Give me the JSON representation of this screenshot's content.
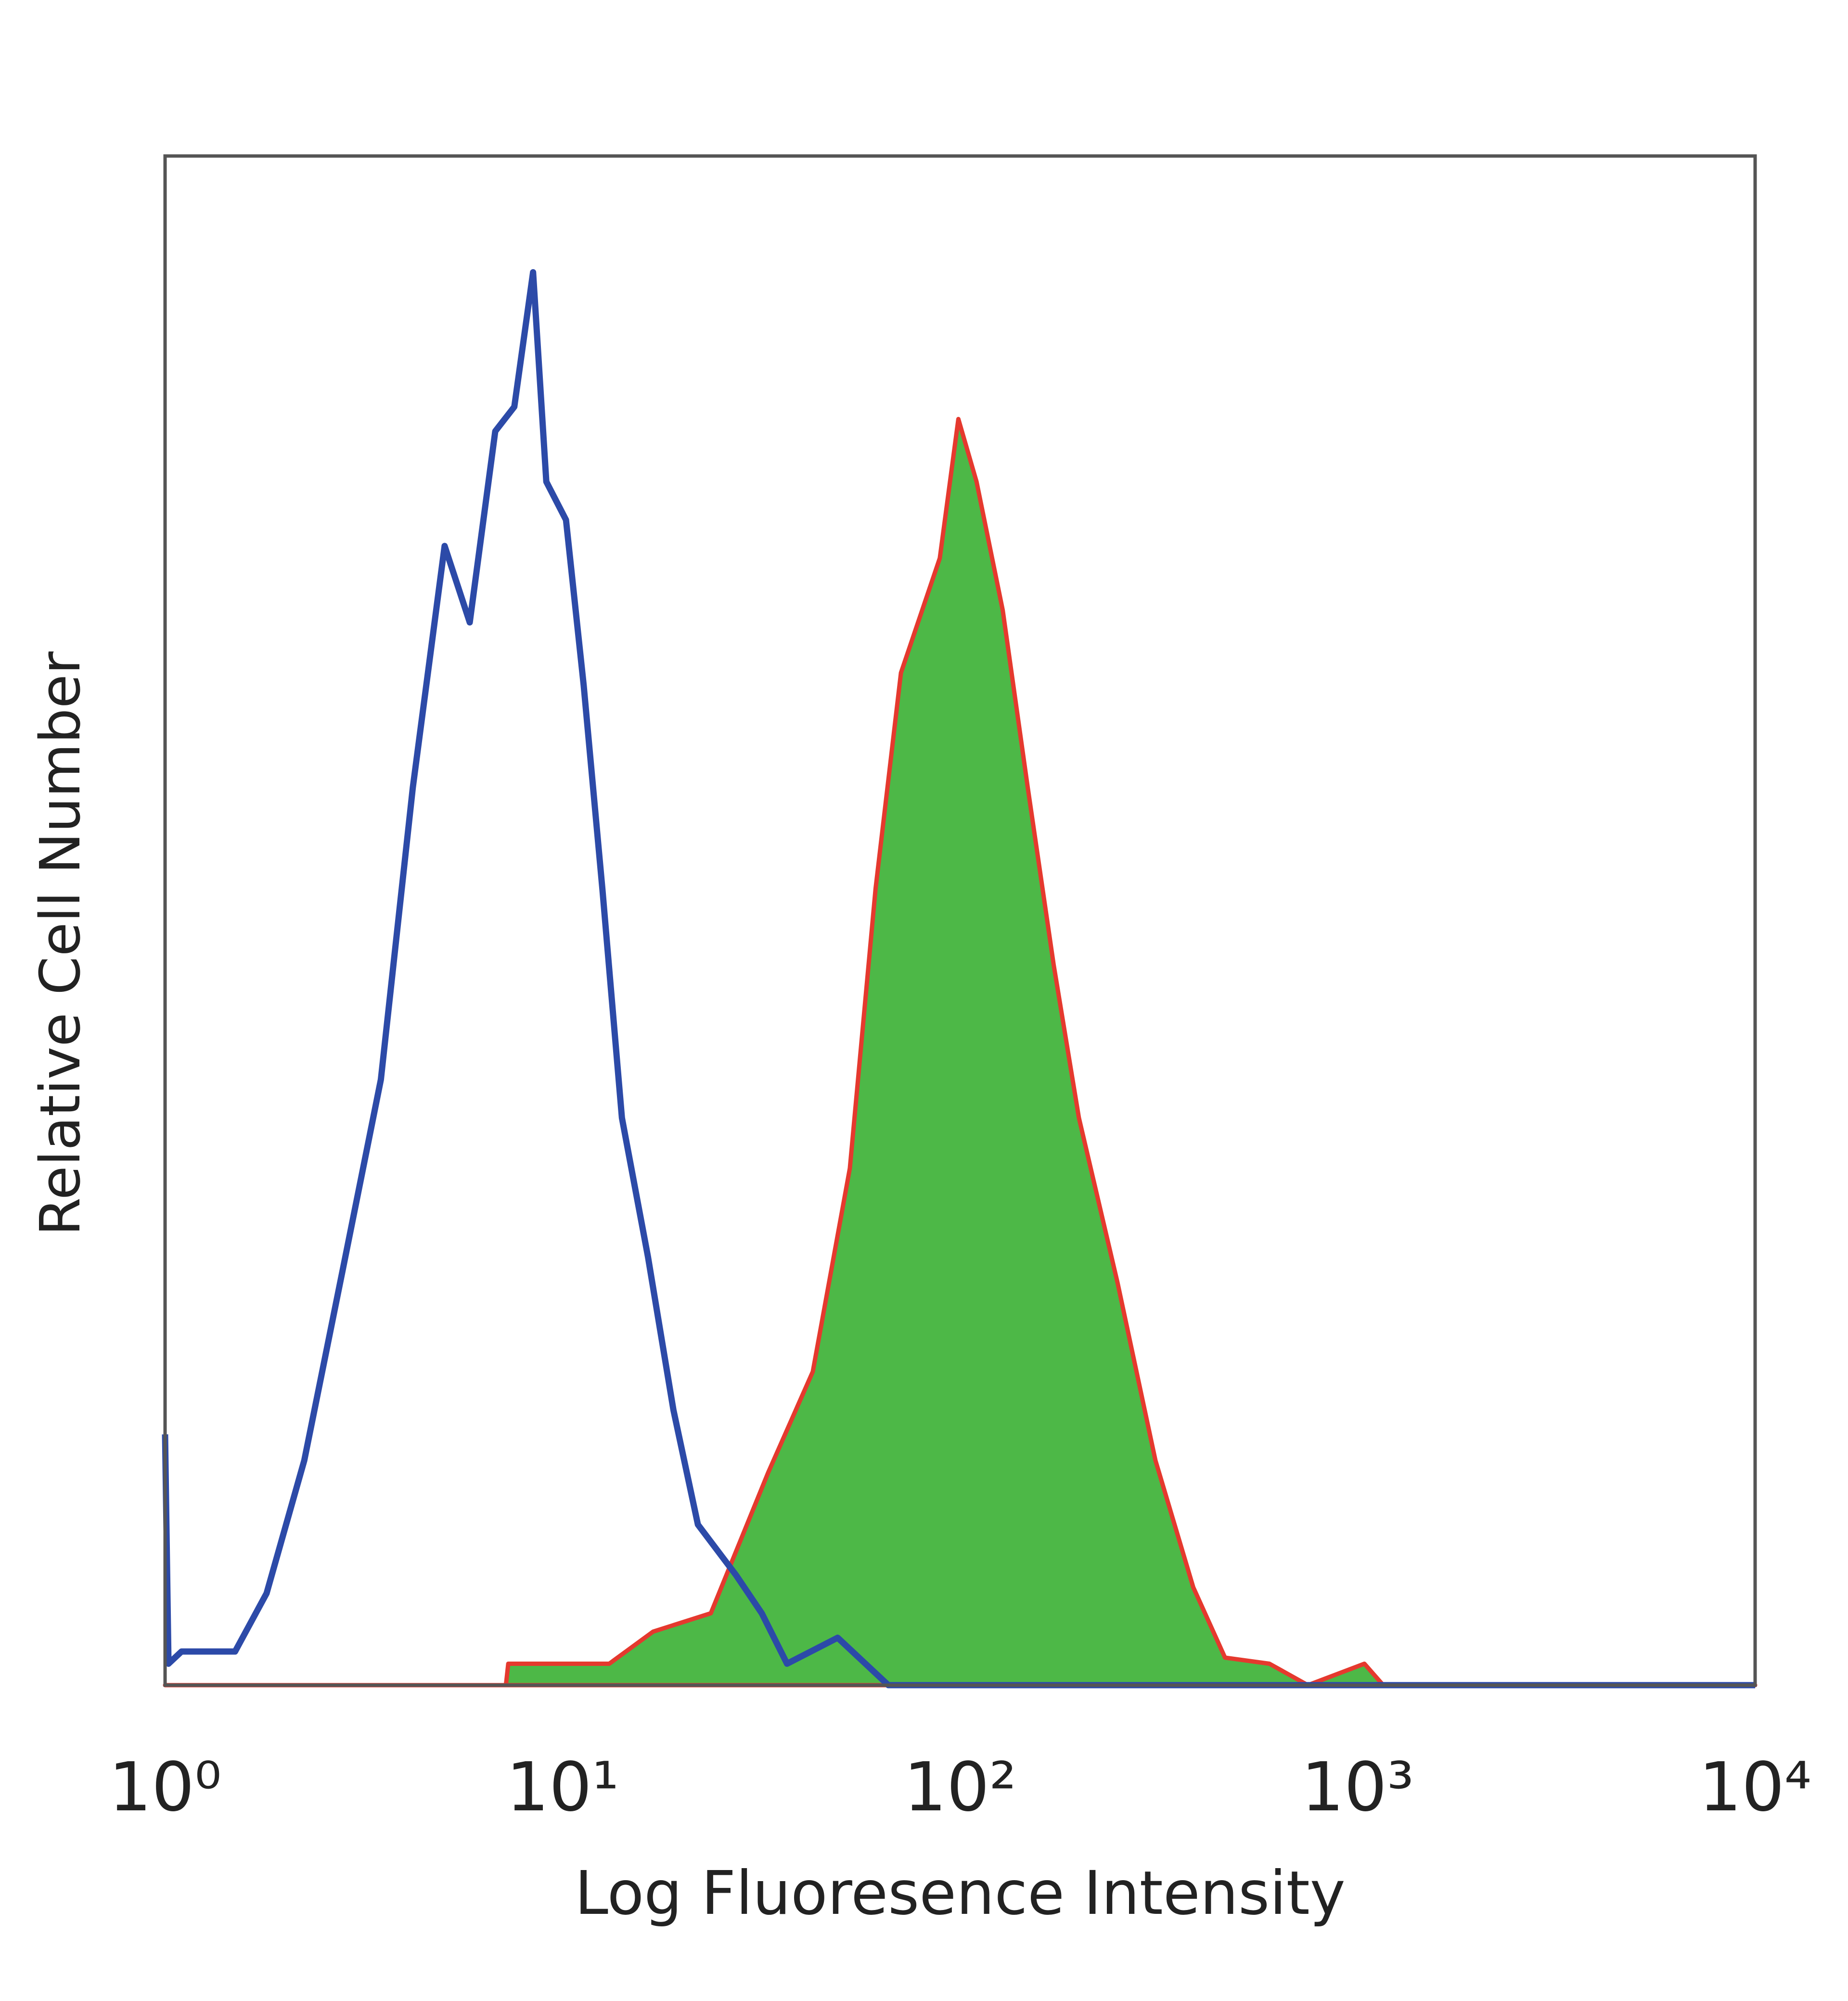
{
  "chart_data": {
    "type": "histogram-line",
    "xlabel": "Log Fluoresence Intensity",
    "ylabel": "Relative Cell Number",
    "xscale": "log",
    "xlim": [
      1,
      10000
    ],
    "ylim": [
      0,
      100
    ],
    "xticks": [
      {
        "value": 1,
        "label": "10⁰"
      },
      {
        "value": 10,
        "label": "10¹"
      },
      {
        "value": 100,
        "label": "10²"
      },
      {
        "value": 1000,
        "label": "10³"
      },
      {
        "value": 10000,
        "label": "10⁴"
      }
    ],
    "grid": false,
    "series": [
      {
        "color": "#2c4aa8",
        "fill": false,
        "x": [
          1,
          1.02,
          1.1,
          1.5,
          1.8,
          2.24,
          2.8,
          3.49,
          4.2,
          5.05,
          5.84,
          6.77,
          7.56,
          8.43,
          9.1,
          10.2,
          11.3,
          12.6,
          14.1,
          16.4,
          19,
          21.9,
          27.3,
          31.7,
          36.7,
          49.2,
          66,
          10000
        ],
        "values": [
          16.4,
          1.4,
          2.2,
          2.2,
          6,
          14.7,
          27.2,
          39.6,
          58.7,
          74.5,
          69.5,
          82,
          83.6,
          92.4,
          78.7,
          76.2,
          65.4,
          52,
          37.1,
          28,
          18,
          10.5,
          7.2,
          4.7,
          1.4,
          3.1,
          0,
          0
        ]
      },
      {
        "color": "#4db847",
        "edge_color": "#e5392e",
        "fill": true,
        "x": [
          1,
          7.2,
          7.3,
          13.1,
          16.9,
          23.6,
          32.9,
          42.6,
          52.8,
          61.3,
          71,
          88.9,
          99,
          110,
          128,
          148,
          172,
          199,
          249,
          310,
          386,
          464,
          600,
          750,
          1040,
          1160,
          10000
        ],
        "values": [
          0,
          0,
          1.4,
          1.4,
          3.5,
          4.7,
          13.9,
          20.5,
          33.8,
          52.1,
          66.2,
          73.7,
          82.8,
          78.7,
          70.3,
          58.7,
          47.1,
          37.1,
          26.3,
          14.7,
          6.4,
          1.8,
          1.4,
          0,
          1.4,
          0,
          0
        ]
      }
    ]
  }
}
